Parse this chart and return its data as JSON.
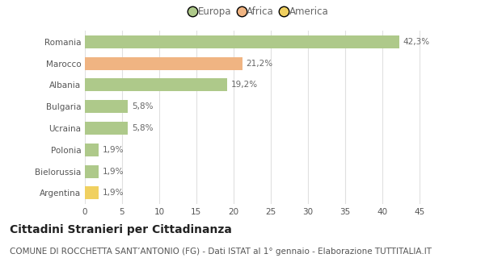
{
  "categories": [
    "Romania",
    "Marocco",
    "Albania",
    "Bulgaria",
    "Ucraina",
    "Polonia",
    "Bielorussia",
    "Argentina"
  ],
  "values": [
    42.3,
    21.2,
    19.2,
    5.8,
    5.8,
    1.9,
    1.9,
    1.9
  ],
  "labels": [
    "42,3%",
    "21,2%",
    "19,2%",
    "5,8%",
    "5,8%",
    "1,9%",
    "1,9%",
    "1,9%"
  ],
  "colors": [
    "#aec98a",
    "#f0b482",
    "#aec98a",
    "#aec98a",
    "#aec98a",
    "#aec98a",
    "#aec98a",
    "#f0d060"
  ],
  "legend_labels": [
    "Europa",
    "Africa",
    "America"
  ],
  "legend_colors": [
    "#aec98a",
    "#f0b482",
    "#f0d060"
  ],
  "title": "Cittadini Stranieri per Cittadinanza",
  "subtitle": "COMUNE DI ROCCHETTA SANT’ANTONIO (FG) - Dati ISTAT al 1° gennaio - Elaborazione TUTTITALIA.IT",
  "xlim": [
    0,
    47
  ],
  "xticks": [
    0,
    5,
    10,
    15,
    20,
    25,
    30,
    35,
    40,
    45
  ],
  "background_color": "#ffffff",
  "grid_color": "#e0e0e0",
  "bar_height": 0.6,
  "title_fontsize": 10,
  "subtitle_fontsize": 7.5,
  "label_fontsize": 7.5,
  "tick_fontsize": 7.5,
  "legend_fontsize": 8.5
}
